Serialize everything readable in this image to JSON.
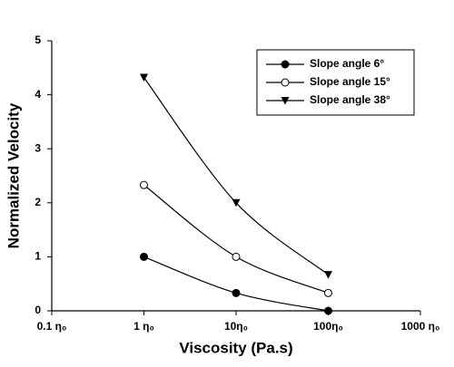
{
  "chart_data": {
    "type": "line",
    "x_label": "Viscosity (Pa.s)",
    "y_label": "Normalized Velocity",
    "x": [
      1,
      10,
      100
    ],
    "x_scale": "log",
    "xlim": [
      0.1,
      1000
    ],
    "xticks": [
      {
        "value": 0.1,
        "label": "0.1 η₀"
      },
      {
        "value": 1,
        "label": "1 η₀"
      },
      {
        "value": 10,
        "label": "10η₀"
      },
      {
        "value": 100,
        "label": "100η₀"
      },
      {
        "value": 1000,
        "label": "1000 η₀"
      }
    ],
    "ylim": [
      0,
      5
    ],
    "yticks": [
      0,
      1,
      2,
      3,
      4,
      5
    ],
    "legend_position": "upper right",
    "series": [
      {
        "name": "Slope angle 6°",
        "color": "#000000",
        "marker": "filled-circle",
        "values": [
          1.0,
          0.33,
          0.0
        ]
      },
      {
        "name": "Slope angle 15°",
        "color": "#000000",
        "marker": "open-circle",
        "values": [
          2.33,
          1.0,
          0.33
        ]
      },
      {
        "name": "Slope angle 38°",
        "color": "#000000",
        "marker": "filled-triangle-down",
        "values": [
          4.32,
          2.0,
          0.67
        ]
      }
    ]
  }
}
